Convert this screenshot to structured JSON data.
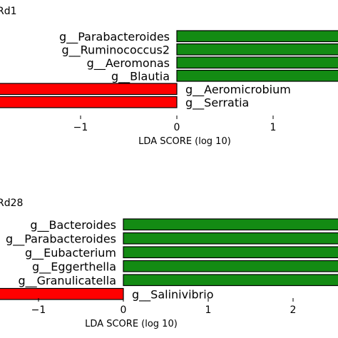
{
  "chart_data": [
    {
      "type": "bar",
      "orientation": "horizontal",
      "title": "Rd1",
      "xlabel": "LDA SCORE (log 10)",
      "xticks": [
        -1,
        0,
        1
      ],
      "xtick_labels": [
        "−1",
        "0",
        "1"
      ],
      "bars": [
        {
          "label": "g__Parabacteroides",
          "value": 2.8,
          "color": "#138b13"
        },
        {
          "label": "g__Ruminococcus2",
          "value": 2.8,
          "color": "#138b13"
        },
        {
          "label": "g__Aeromonas",
          "value": 2.8,
          "color": "#138b13"
        },
        {
          "label": "g__Blautia",
          "value": 2.8,
          "color": "#138b13"
        },
        {
          "label": "g__Aeromicrobium",
          "value": -2.5,
          "color": "#ff0000"
        },
        {
          "label": "g__Serratia",
          "value": -2.5,
          "color": "#ff0000"
        }
      ],
      "grid": false,
      "legend": "none"
    },
    {
      "type": "bar",
      "orientation": "horizontal",
      "title": "Rd28",
      "xlabel": "LDA SCORE (log 10)",
      "xticks": [
        -1,
        0,
        1,
        2
      ],
      "xtick_labels": [
        "−1",
        "0",
        "1",
        "2"
      ],
      "bars": [
        {
          "label": "g__Bacteroides",
          "value": 3.0,
          "color": "#138b13"
        },
        {
          "label": "g__Parabacteroides",
          "value": 3.0,
          "color": "#138b13"
        },
        {
          "label": "g__Eubacterium",
          "value": 3.0,
          "color": "#138b13"
        },
        {
          "label": "g__Eggerthella",
          "value": 3.0,
          "color": "#138b13"
        },
        {
          "label": "g__Granulicatella",
          "value": 3.0,
          "color": "#138b13"
        },
        {
          "label": "g__Salinivibrio",
          "value": -2.0,
          "color": "#ff0000"
        }
      ],
      "grid": false,
      "legend": "none"
    }
  ]
}
